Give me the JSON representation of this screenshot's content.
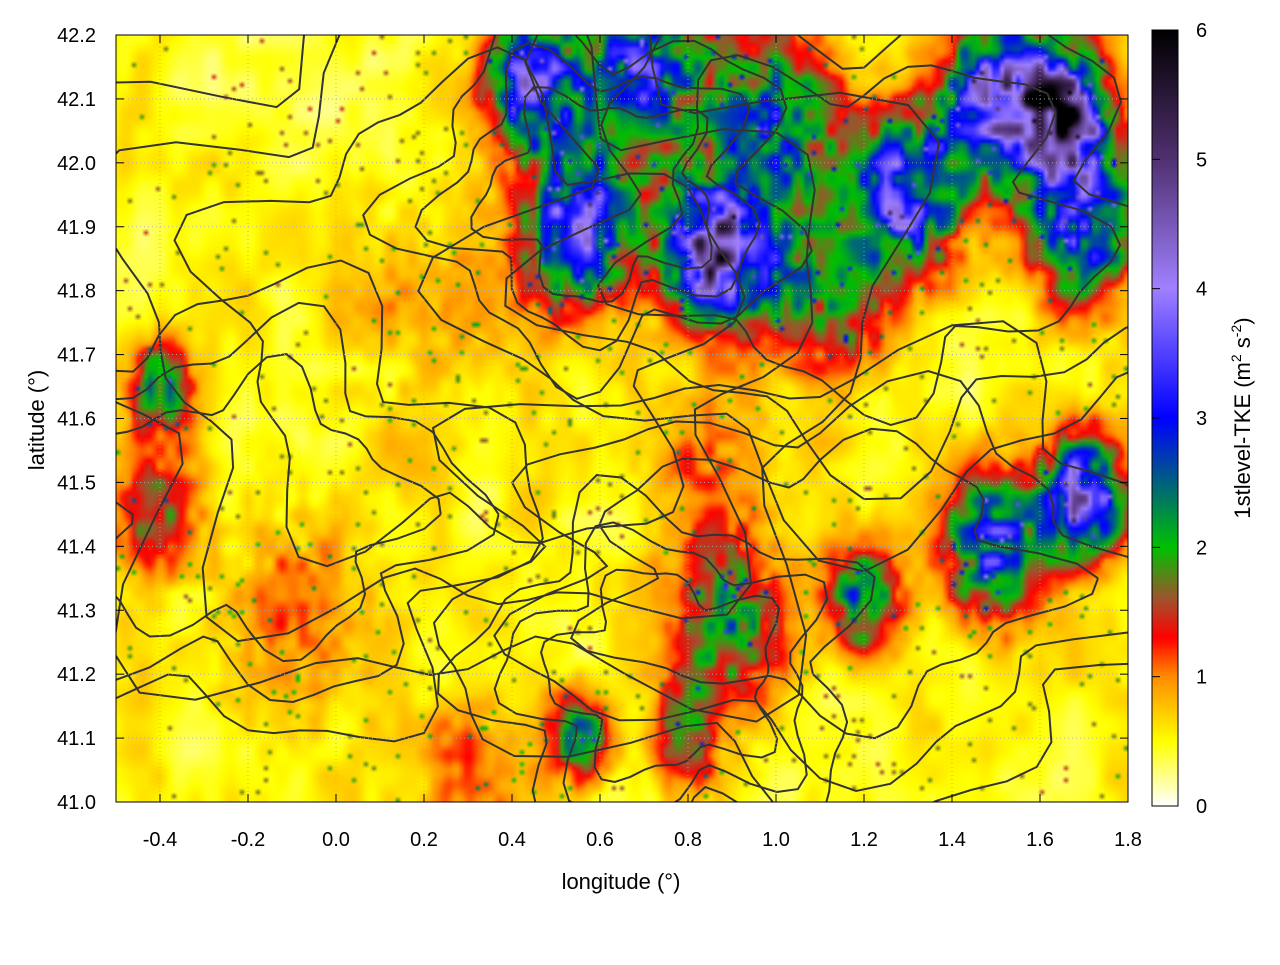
{
  "chart_data": {
    "type": "heatmap",
    "title": "",
    "xlabel": "longitude (°)",
    "ylabel": "latitude (°)",
    "xlim": [
      -0.5,
      1.8
    ],
    "ylim": [
      41.0,
      42.2
    ],
    "xticks": [
      -0.4,
      -0.2,
      0.0,
      0.2,
      0.4,
      0.6,
      0.8,
      1.0,
      1.2,
      1.4,
      1.6,
      1.8
    ],
    "xtick_labels": [
      "-0.4",
      "-0.2",
      "0.0",
      "0.2",
      "0.4",
      "0.6",
      "0.8",
      "1.0",
      "1.2",
      "1.4",
      "1.6",
      "1.8"
    ],
    "yticks": [
      41.0,
      41.1,
      41.2,
      41.3,
      41.4,
      41.5,
      41.6,
      41.7,
      41.8,
      41.9,
      42.0,
      42.1,
      42.2
    ],
    "ytick_labels": [
      "41.0",
      "41.1",
      "41.2",
      "41.3",
      "41.4",
      "41.5",
      "41.6",
      "41.7",
      "41.8",
      "41.9",
      "42.0",
      "42.1",
      "42.2"
    ],
    "grid": true,
    "colorbar": {
      "label_main": "1stlevel-TKE (m",
      "label_sup1": "2",
      "label_mid": " s",
      "label_sup2": "-2",
      "label_end": ")",
      "range": [
        0,
        6
      ],
      "ticks": [
        0,
        1,
        2,
        3,
        4,
        5,
        6
      ],
      "tick_labels": [
        "0",
        "1",
        "2",
        "3",
        "4",
        "5",
        "6"
      ],
      "stops": [
        {
          "value": 0.0,
          "color": "#ffffff"
        },
        {
          "value": 0.5,
          "color": "#ffff00"
        },
        {
          "value": 1.0,
          "color": "#ff8c00"
        },
        {
          "value": 1.3,
          "color": "#ff0000"
        },
        {
          "value": 1.6,
          "color": "#a0522d"
        },
        {
          "value": 2.0,
          "color": "#00c000"
        },
        {
          "value": 3.0,
          "color": "#0000ff"
        },
        {
          "value": 4.0,
          "color": "#a080ff"
        },
        {
          "value": 5.0,
          "color": "#503070"
        },
        {
          "value": 6.0,
          "color": "#000000"
        }
      ]
    },
    "hotspots": [
      {
        "lon": 0.55,
        "lat": 41.9,
        "tke": 3.0,
        "r": 0.12
      },
      {
        "lon": 0.85,
        "lat": 41.86,
        "tke": 4.0,
        "r": 0.1
      },
      {
        "lon": 0.45,
        "lat": 42.12,
        "tke": 3.2,
        "r": 0.1
      },
      {
        "lon": 0.7,
        "lat": 42.15,
        "tke": 2.5,
        "r": 0.15
      },
      {
        "lon": 1.0,
        "lat": 42.05,
        "tke": 2.2,
        "r": 0.15
      },
      {
        "lon": 1.3,
        "lat": 41.95,
        "tke": 3.0,
        "r": 0.12
      },
      {
        "lon": 1.5,
        "lat": 42.1,
        "tke": 3.5,
        "r": 0.12
      },
      {
        "lon": 1.65,
        "lat": 42.07,
        "tke": 4.5,
        "r": 0.1
      },
      {
        "lon": 1.7,
        "lat": 41.9,
        "tke": 2.5,
        "r": 0.12
      },
      {
        "lon": 1.15,
        "lat": 41.78,
        "tke": 1.3,
        "r": 0.12
      },
      {
        "lon": 1.0,
        "lat": 41.82,
        "tke": 1.1,
        "r": 0.1
      },
      {
        "lon": -0.4,
        "lat": 41.65,
        "tke": 1.8,
        "r": 0.07
      },
      {
        "lon": -0.4,
        "lat": 41.45,
        "tke": 1.1,
        "r": 0.1
      },
      {
        "lon": 1.7,
        "lat": 41.48,
        "tke": 3.5,
        "r": 0.09
      },
      {
        "lon": 1.5,
        "lat": 41.4,
        "tke": 2.6,
        "r": 0.11
      },
      {
        "lon": 1.2,
        "lat": 41.32,
        "tke": 2.2,
        "r": 0.08
      },
      {
        "lon": 0.9,
        "lat": 41.28,
        "tke": 1.8,
        "r": 0.12
      },
      {
        "lon": 0.55,
        "lat": 41.1,
        "tke": 2.0,
        "r": 0.07
      },
      {
        "lon": 0.8,
        "lat": 41.1,
        "tke": 1.4,
        "r": 0.08
      },
      {
        "lon": 0.3,
        "lat": 41.05,
        "tke": 0.8,
        "r": 0.1
      },
      {
        "lon": 0.85,
        "lat": 41.5,
        "tke": 0.7,
        "r": 0.15
      },
      {
        "lon": -0.1,
        "lat": 41.3,
        "tke": 0.6,
        "r": 0.18
      },
      {
        "lon": 0.2,
        "lat": 41.8,
        "tke": 0.4,
        "r": 0.2
      }
    ]
  }
}
